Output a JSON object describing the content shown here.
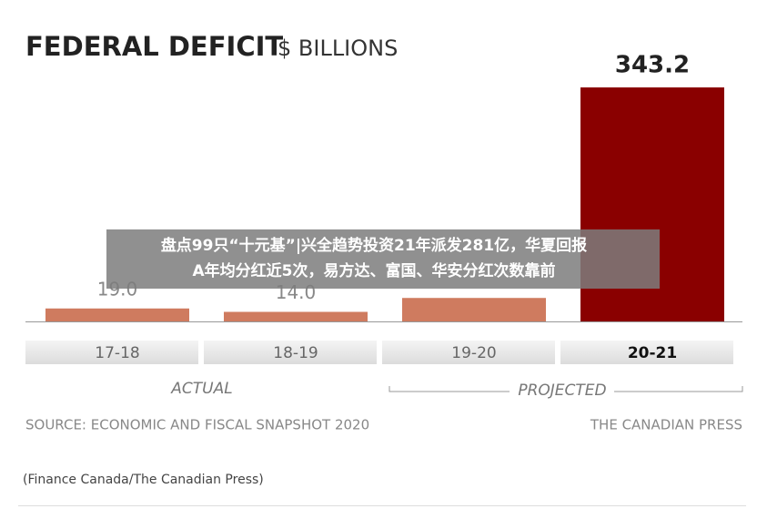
{
  "chart_data": {
    "type": "bar",
    "title": "FEDERAL DEFICIT",
    "subtitle": "$ BILLIONS",
    "categories": [
      "17-18",
      "18-19",
      "19-20",
      "20-21"
    ],
    "values": [
      19,
      14,
      34.4,
      343.2
    ],
    "value_labels": [
      "19.0",
      "14.0",
      null,
      "343.2"
    ],
    "colors": [
      "#cf7b5f",
      "#cf7b5f",
      "#cf7b5f",
      "#8a0000"
    ],
    "annotations": [
      "ACTUAL",
      "PROJECTED"
    ],
    "source": "SOURCE: ECONOMIC AND FISCAL SNAPSHOT 2020",
    "credit": "THE CANADIAN PRESS"
  },
  "caption": "(Finance Canada/The Canadian Press)",
  "overlay": [
    "盘点99只“十元基”|兴全趋势投资21年派发281亿，华夏回报",
    "A年均分红近5次，易方达、富国、华安分红次数靠前"
  ]
}
